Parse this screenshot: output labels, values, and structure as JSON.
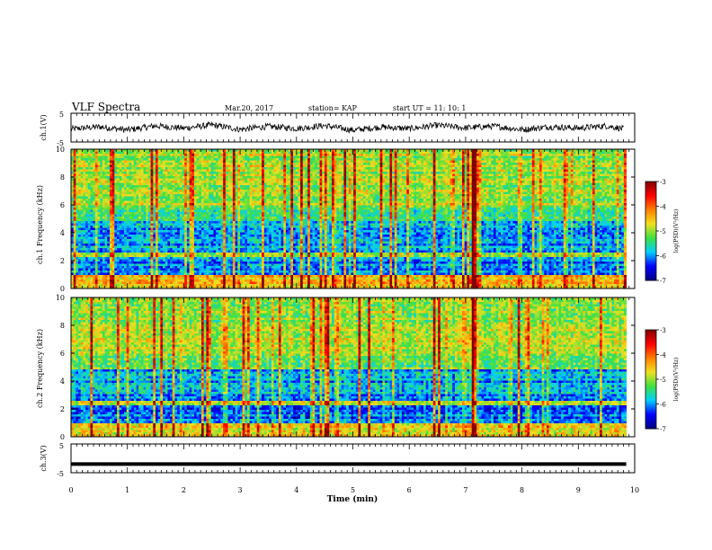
{
  "header": {
    "title": "VLF Spectra",
    "date": "Mar.20, 2017",
    "station": "station= KAP",
    "start": "start  UT =   11: 10: 1"
  },
  "chart_data": [
    {
      "type": "line",
      "panel": "ch1-waveform",
      "ylabel": "ch.1(V)",
      "ylim": [
        -5,
        5
      ],
      "yticks": [
        "5",
        "-5"
      ],
      "xlim": [
        0,
        10
      ],
      "note": "dense noisy waveform around 0 V",
      "series_sample_x": [
        0,
        0.5,
        1,
        1.5,
        2,
        2.5,
        3,
        3.5,
        4,
        4.5,
        5,
        5.5,
        6,
        6.5,
        7,
        7.5,
        8,
        8.5,
        9,
        9.5,
        9.8
      ],
      "series_sample_y": [
        -0.5,
        0.3,
        -0.8,
        0.6,
        -0.2,
        0.9,
        -0.6,
        0.4,
        -0.3,
        0.7,
        -0.9,
        0.2,
        -0.4,
        0.8,
        -0.1,
        0.5,
        -0.7,
        0.3,
        -0.2,
        0.6,
        -0.4
      ]
    },
    {
      "type": "heatmap",
      "panel": "ch1-spectrogram",
      "ylabel": "ch.1\nFrequency (kHz)",
      "ylim": [
        0,
        10
      ],
      "yticks": [
        "0",
        "2",
        "4",
        "6",
        "8",
        "10"
      ],
      "xlim": [
        0,
        10
      ],
      "colorbar": {
        "label": "log(PSD)(V²/Hz)",
        "ticks": [
          "-3",
          "-4",
          "-5",
          "-6",
          "-7"
        ],
        "range": [
          -7,
          -3
        ]
      },
      "features": {
        "strong_event_time_min": 7.15,
        "data_end_time_min": 9.85
      }
    },
    {
      "type": "heatmap",
      "panel": "ch2-spectrogram",
      "ylabel": "ch.2\nFrequency (kHz)",
      "ylim": [
        0,
        10
      ],
      "yticks": [
        "0",
        "2",
        "4",
        "6",
        "8",
        "10"
      ],
      "xlim": [
        0,
        10
      ],
      "colorbar": {
        "label": "log(PSD)(V²/Hz)",
        "ticks": [
          "-3",
          "-4",
          "-5",
          "-6",
          "-7"
        ],
        "range": [
          -7,
          -3
        ]
      },
      "features": {
        "strong_event_time_min": 7.15,
        "data_end_time_min": 9.85
      }
    },
    {
      "type": "line",
      "panel": "ch3-waveform",
      "ylabel": "ch.3(V)",
      "ylim": [
        -5,
        5
      ],
      "yticks": [
        "5",
        "-5"
      ],
      "xlim": [
        0,
        10
      ],
      "series_x": [
        0,
        9.85
      ],
      "series_y": [
        -2,
        -2
      ]
    }
  ],
  "xaxis": {
    "label": "Time (min)",
    "ticks": [
      "0",
      "1",
      "2",
      "3",
      "4",
      "5",
      "6",
      "7",
      "8",
      "9",
      "10"
    ]
  },
  "colors": {
    "dark_blue": "#000080",
    "blue": "#0000ff",
    "cyan": "#00d0ff",
    "green": "#40e040",
    "yellow": "#f0e020",
    "orange": "#ff8000",
    "red": "#ff0000",
    "dark_red": "#800000"
  }
}
